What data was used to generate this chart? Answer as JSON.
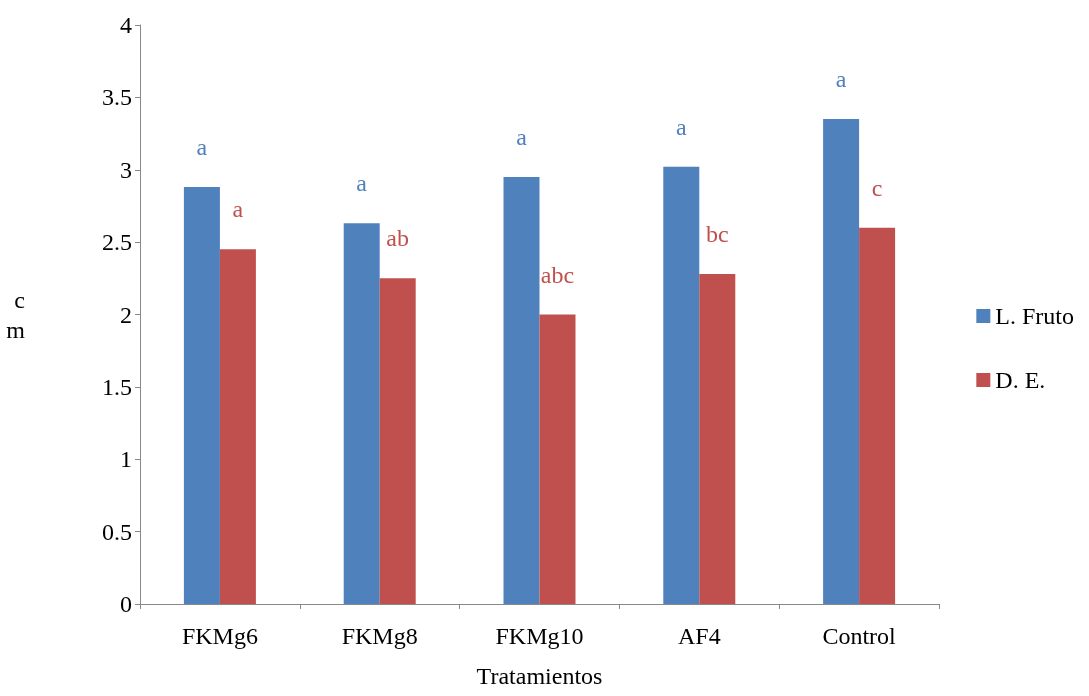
{
  "chart_data": {
    "type": "bar",
    "xlabel": "Tratamientos",
    "ylabel": "cm",
    "categories": [
      "FKMg6",
      "FKMg8",
      "FKMg10",
      "AF4",
      "Control"
    ],
    "series": [
      {
        "name": "L. Fruto",
        "color": "#4f81bd",
        "values": [
          2.88,
          2.63,
          2.95,
          3.02,
          3.35
        ],
        "value_labels": [
          "a",
          "a",
          "a",
          "a",
          "a"
        ]
      },
      {
        "name": "D. E.",
        "color": "#c0504d",
        "values": [
          2.45,
          2.25,
          2.0,
          2.28,
          2.6
        ],
        "value_labels": [
          "a",
          "ab",
          "abc",
          "bc",
          "c"
        ]
      }
    ],
    "ylim": [
      0,
      4
    ],
    "yticks": [
      0,
      0.5,
      1,
      1.5,
      2,
      2.5,
      3,
      3.5,
      4
    ],
    "grid": false,
    "legend": "right"
  }
}
